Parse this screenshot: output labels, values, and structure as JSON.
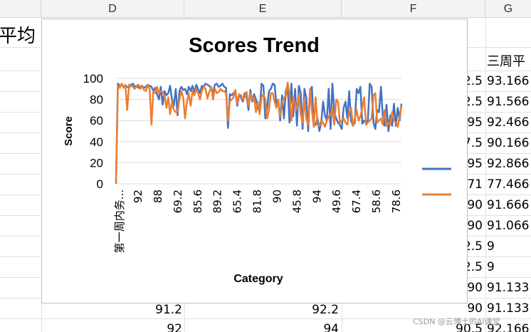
{
  "spreadsheet": {
    "columns": [
      "D",
      "E",
      "F",
      "G"
    ],
    "left_cell_fragment": "平均",
    "g_header_fragment": "三周平",
    "f_column_values": [
      "2.5",
      "2.5",
      "95",
      "7.5",
      "95",
      "71",
      "90",
      "90",
      "2.5",
      "2.5",
      "90",
      "90",
      "90.5"
    ],
    "g_column_values": [
      "93.166",
      "91.566",
      "92.466",
      "90.166",
      "92.866",
      "77.466",
      "91.666",
      "91.066",
      "9",
      "9",
      "91.133",
      "91.133",
      "92.166"
    ],
    "d_column_values": [
      "91.2",
      "92"
    ],
    "e_column_values": [
      "92.2",
      "94"
    ]
  },
  "chart_data": {
    "type": "line",
    "title": "Scores Trend",
    "xlabel": "Category",
    "ylabel": "Score",
    "ylim": [
      0,
      100
    ],
    "yticks": [
      0,
      20,
      40,
      60,
      80,
      100
    ],
    "xtick_labels": [
      "第一周内务...",
      "92",
      "88",
      "69.2",
      "85.6",
      "89.2",
      "65.4",
      "81.8",
      "90",
      "45.8",
      "94",
      "49.6",
      "67.4",
      "58.6",
      "78.6"
    ],
    "grid": true,
    "legend_position": "right",
    "series": [
      {
        "color": "#4472C4",
        "values": [
          0,
          95,
          93,
          94,
          92,
          93,
          92,
          91,
          94,
          95,
          92,
          93,
          91,
          92,
          93,
          91,
          92,
          94,
          93,
          92,
          88,
          91,
          85,
          80,
          92,
          75,
          88,
          84,
          86,
          93,
          80,
          74,
          90,
          65,
          88,
          92,
          89,
          90,
          85,
          92,
          88,
          93,
          86,
          94,
          90,
          86,
          93,
          92,
          95,
          94,
          93,
          90,
          87,
          94,
          95,
          92,
          93,
          95,
          92,
          91,
          53,
          85,
          84,
          86,
          88,
          74,
          84,
          82,
          78,
          86,
          83,
          70,
          89,
          78,
          85,
          80,
          72,
          68,
          95,
          93,
          62,
          72,
          88,
          90,
          95,
          94,
          75,
          80,
          60,
          84,
          62,
          88,
          94,
          58,
          95,
          64,
          90,
          55,
          93,
          86,
          52,
          90,
          82,
          50,
          88,
          92,
          55,
          56,
          62,
          50,
          58,
          78,
          65,
          60,
          90,
          52,
          95,
          68,
          62,
          58,
          56,
          52,
          72,
          78,
          62,
          88,
          60,
          55,
          58,
          90,
          86,
          92,
          57,
          60,
          58,
          60,
          95,
          92,
          58,
          52,
          70,
          68,
          92,
          64,
          55,
          75,
          50,
          65,
          55,
          76,
          55,
          72,
          60,
          76
        ],
        "values_note": "",
        "name_shown": ""
      },
      {
        "color": "#ED7D31",
        "values": [
          0,
          93,
          91,
          95,
          91,
          94,
          70,
          94,
          93,
          92,
          90,
          93,
          94,
          90,
          93,
          89,
          88,
          94,
          90,
          56,
          88,
          86,
          92,
          86,
          88,
          87,
          84,
          72,
          82,
          66,
          78,
          70,
          68,
          68,
          80,
          88,
          82,
          62,
          78,
          86,
          74,
          88,
          84,
          90,
          86,
          80,
          88,
          92,
          90,
          81,
          87,
          92,
          80,
          90,
          86,
          87,
          90,
          88,
          88,
          86,
          60,
          78,
          80,
          82,
          89,
          76,
          85,
          84,
          80,
          82,
          87,
          74,
          86,
          80,
          82,
          68,
          78,
          66,
          82,
          85,
          80,
          62,
          70,
          86,
          86,
          78,
          72,
          80,
          64,
          76,
          82,
          82,
          96,
          85,
          60,
          82,
          76,
          70,
          85,
          66,
          58,
          80,
          62,
          56,
          90,
          70,
          54,
          82,
          56,
          55,
          60,
          58,
          54,
          60,
          64,
          66,
          72,
          56,
          80,
          78,
          58,
          60,
          62,
          58,
          56,
          68,
          72,
          55,
          62,
          70,
          60,
          64,
          72,
          82,
          56,
          58,
          60,
          62,
          84,
          86,
          58,
          60,
          62,
          56,
          70,
          55,
          58,
          56,
          68,
          60,
          58,
          54,
          64,
          74
        ]
      }
    ]
  },
  "watermark": "CSDN @云博士的AI课堂"
}
